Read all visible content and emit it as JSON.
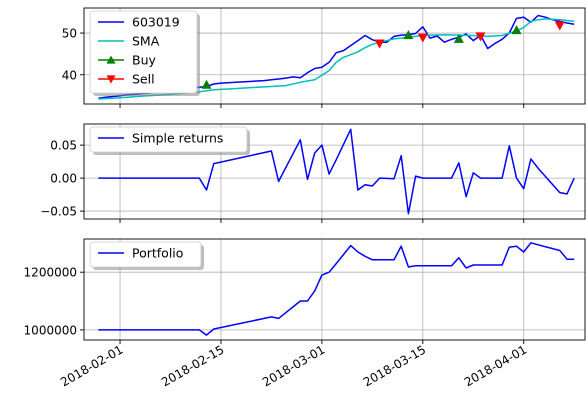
{
  "chart_data": [
    {
      "type": "line",
      "id": "price",
      "ylim": [
        33,
        56
      ],
      "yticks": [
        40,
        50
      ],
      "x_start": "2018-01-29",
      "xlim_days": [
        -2,
        67.5
      ],
      "legend_placement": "upper-left",
      "grid": true,
      "series": [
        {
          "name": "603019",
          "color": "#0000ff",
          "x": [
            0,
            1,
            2,
            3,
            4,
            5,
            6,
            7,
            8,
            9,
            10,
            11,
            12,
            13,
            14,
            15,
            16,
            17,
            18,
            19,
            20,
            21,
            22,
            23,
            24,
            25,
            26,
            27,
            28,
            29,
            30,
            31,
            32,
            33,
            34,
            35,
            36,
            37,
            38,
            39,
            40,
            41,
            42,
            43,
            44,
            45,
            46,
            47,
            48,
            49,
            50,
            51,
            52,
            53,
            54,
            55,
            56,
            57,
            58,
            59,
            60,
            61,
            62,
            63,
            64,
            65,
            66
          ],
          "y": [
            34.4,
            34.6,
            34.8,
            35.0,
            35.2,
            35.3,
            35.5,
            35.6,
            35.8,
            36.0,
            36.2,
            36.4,
            36.6,
            36.8,
            37.0,
            37.2,
            37.8,
            38.0,
            38.1,
            38.2,
            38.3,
            38.4,
            38.5,
            38.6,
            38.8,
            39.0,
            39.2,
            39.5,
            39.3,
            40.5,
            41.5,
            41.8,
            43.0,
            45.3,
            45.8,
            47.0,
            48.2,
            49.4,
            48.4,
            47.8,
            47.8,
            49.2,
            49.5,
            49.6,
            49.9,
            51.5,
            48.8,
            49.3,
            47.8,
            48.5,
            49.0,
            49.8,
            48.2,
            49.5,
            46.3,
            47.5,
            48.5,
            50.0,
            53.5,
            53.8,
            52.6,
            54.2,
            53.8,
            53.2,
            52.8,
            52.4,
            52.1
          ]
        },
        {
          "name": "SMA",
          "color": "#00bfbf",
          "x": [
            0,
            2,
            4,
            6,
            8,
            10,
            12,
            14,
            16,
            18,
            20,
            22,
            24,
            26,
            28,
            30,
            32,
            33,
            34,
            35,
            36,
            37,
            38,
            39,
            40,
            41,
            42,
            43,
            44,
            45,
            46,
            48,
            50,
            52,
            54,
            56,
            58,
            59,
            60,
            61,
            62,
            63,
            64,
            65,
            66
          ],
          "y": [
            34.2,
            34.4,
            34.6,
            34.9,
            35.1,
            35.3,
            35.6,
            35.9,
            36.4,
            36.6,
            36.8,
            37.0,
            37.2,
            37.4,
            38.2,
            38.8,
            41.0,
            43.0,
            44.2,
            44.8,
            45.5,
            46.5,
            47.3,
            47.8,
            48.2,
            48.6,
            48.8,
            49.0,
            49.2,
            49.4,
            49.5,
            49.6,
            49.5,
            49.4,
            49.2,
            49.4,
            50.5,
            51.3,
            52.8,
            53.2,
            53.4,
            53.3,
            53.2,
            53.0,
            52.8
          ]
        },
        {
          "name": "Buy",
          "color": "#008000",
          "marker": "triangle-up",
          "x": [
            15,
            43,
            50,
            58
          ],
          "y": [
            37.6,
            49.5,
            48.6,
            50.7
          ]
        },
        {
          "name": "Sell",
          "color": "#ff0000",
          "marker": "triangle-down",
          "x": [
            39,
            45,
            53,
            64
          ],
          "y": [
            47.5,
            48.9,
            49.2,
            51.8
          ]
        }
      ]
    },
    {
      "type": "line",
      "id": "returns",
      "ylim": [
        -0.062,
        0.082
      ],
      "yticks": [
        -0.05,
        0.0,
        0.05
      ],
      "ytick_labels": [
        "−0.05",
        "0.00",
        "0.05"
      ],
      "legend_placement": "upper-left",
      "grid": true,
      "series": [
        {
          "name": "Simple returns",
          "color": "#0000ff",
          "x": [
            0,
            14,
            15,
            16,
            24,
            25,
            28,
            29,
            30,
            31,
            32,
            33,
            35,
            36,
            37,
            38,
            39,
            41,
            42,
            43,
            44,
            45,
            46,
            49,
            50,
            51,
            52,
            53,
            56,
            57,
            58,
            59,
            60,
            61,
            64,
            65,
            66
          ],
          "y": [
            0.0,
            0.0,
            -0.018,
            0.022,
            0.041,
            -0.005,
            0.058,
            -0.002,
            0.038,
            0.05,
            0.006,
            0.028,
            0.074,
            -0.018,
            -0.01,
            -0.012,
            0.0,
            -0.001,
            0.034,
            -0.054,
            0.003,
            0.0,
            0.0,
            0.0,
            0.023,
            -0.028,
            0.008,
            0.0,
            0.0,
            0.049,
            0.0,
            -0.016,
            0.029,
            0.015,
            -0.022,
            -0.024,
            0.0
          ]
        }
      ]
    },
    {
      "type": "line",
      "id": "portfolio",
      "ylim": [
        965000,
        1315000
      ],
      "yticks": [
        1000000,
        1200000
      ],
      "ytick_labels": [
        "1000000",
        "1200000"
      ],
      "legend_placement": "upper-left",
      "grid": true,
      "series": [
        {
          "name": "Portfolio",
          "color": "#0000ff",
          "x": [
            0,
            14,
            15,
            16,
            24,
            25,
            28,
            29,
            30,
            31,
            32,
            33,
            35,
            36,
            37,
            38,
            39,
            41,
            42,
            43,
            44,
            45,
            46,
            49,
            50,
            51,
            52,
            53,
            56,
            57,
            58,
            59,
            60,
            61,
            64,
            65,
            66
          ],
          "y": [
            1000000,
            1000000,
            982000,
            1003000,
            1045000,
            1040000,
            1100000,
            1100000,
            1135000,
            1190000,
            1200000,
            1230000,
            1292000,
            1270000,
            1255000,
            1243000,
            1243000,
            1243000,
            1290000,
            1218000,
            1222000,
            1222000,
            1222000,
            1222000,
            1250000,
            1215000,
            1225000,
            1225000,
            1225000,
            1287000,
            1290000,
            1270000,
            1302000,
            1295000,
            1275000,
            1245000,
            1245000
          ]
        }
      ]
    }
  ],
  "x_axis": {
    "tick_days": [
      3,
      17,
      31,
      45,
      59
    ],
    "tick_labels": [
      "2018-02-01",
      "2018-02-15",
      "2018-03-01",
      "2018-03-15",
      "2018-04-01"
    ]
  }
}
